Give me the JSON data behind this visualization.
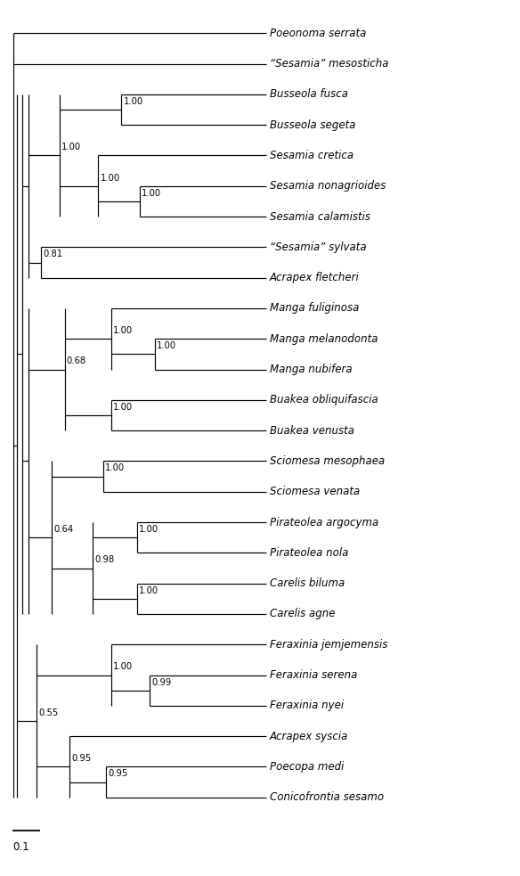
{
  "background_color": "#ffffff",
  "line_color": "#000000",
  "text_color": "#000000",
  "font_size": 8.5,
  "taxa": [
    "Poeonoma serrata",
    "“Sesamia” mesosticha",
    "Busseola fusca",
    "Busseola segeta",
    "Sesamia cretica",
    "Sesamia nonagrioides",
    "Sesamia calamistis",
    "“Sesamia” sylvata",
    "Acrapex fletcheri",
    "Manga fuliginosa",
    "Manga melanodonta",
    "Manga nubifera",
    "Buakea obliquifascia",
    "Buakea venusta",
    "Sciomesa mesophaea",
    "Sciomesa venata",
    "Pirateolea argocyma",
    "Pirateolea nola",
    "Carelis biluma",
    "Carelis agne",
    "Feraxinia jemjemensis",
    "Feraxinia serena",
    "Feraxinia nyei",
    "Acrapex syscia",
    "Poecopa medi",
    "Conicofrontia sesamo"
  ],
  "node_labels": {
    "busseola_pair": "1.00",
    "sesamia_non_cal": "1.00",
    "sesamia3": "1.00",
    "buss_ses": "1.00",
    "sylv_flet": "0.81",
    "mel_nub": "1.00",
    "manga3": "1.00",
    "buakea_pair": "1.00",
    "manga_buakea": "0.68",
    "sciomesa_pair": "1.00",
    "pirat_pair": "1.00",
    "carelis_pair": "1.00",
    "pir_car": "0.98",
    "sci_pir": "0.64",
    "fer_ser_nyei": "0.99",
    "fer3": "1.00",
    "poec_con": "0.95",
    "acr_poec": "0.95",
    "fer_acr": "0.55"
  }
}
